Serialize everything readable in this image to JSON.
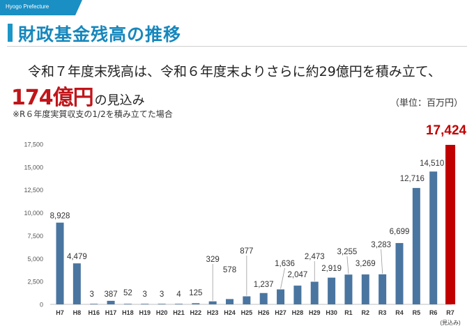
{
  "header": {
    "tag": "Hyogo Prefecture",
    "title": "財政基金残高の推移"
  },
  "lead": {
    "line1": "令和７年度末残高は、令和６年度末よりさらに約29億円を積み立て、",
    "big": "174億円",
    "suffix": "の見込み"
  },
  "unit": "（単位：百万円）",
  "note": "※R６年度実質収支の1/2を積み立てた場合",
  "colors": {
    "bar": "#4a75a0",
    "highlight": "#c00000",
    "title": "#1687bd",
    "accent": "#1b96c8"
  },
  "chart_data": {
    "type": "bar",
    "title": "財政基金残高の推移",
    "xlabel": "",
    "ylabel": "",
    "ylim": [
      0,
      17500
    ],
    "yticks": [
      0,
      2500,
      5000,
      7500,
      10000,
      12500,
      15000,
      17500
    ],
    "ytick_labels": [
      "0",
      "2,500",
      "5,000",
      "7,500",
      "10,000",
      "12,500",
      "15,000",
      "17,500"
    ],
    "categories": [
      "H7",
      "H8",
      "H16",
      "H17",
      "H18",
      "H19",
      "H20",
      "H21",
      "H22",
      "H23",
      "H24",
      "H25",
      "H26",
      "H27",
      "H28",
      "H29",
      "H30",
      "R1",
      "R2",
      "R3",
      "R4",
      "R5",
      "R6",
      "R7"
    ],
    "values": [
      8928,
      4479,
      3,
      387,
      52,
      3,
      3,
      4,
      125,
      329,
      578,
      877,
      1237,
      1636,
      2047,
      2473,
      2919,
      3255,
      3269,
      3283,
      6699,
      12716,
      14510,
      17424
    ],
    "labels": [
      "8,928",
      "4,479",
      "3",
      "387",
      "52",
      "3",
      "3",
      "4",
      "125",
      "329",
      "578",
      "877",
      "1,237",
      "1,636",
      "2,047",
      "2,473",
      "2,919",
      "3,255",
      "3,269",
      "3,283",
      "6,699",
      "12,716",
      "14,510",
      "17,424"
    ],
    "highlight_index": 23,
    "estimate_note": "(見込み)",
    "grid": false
  }
}
